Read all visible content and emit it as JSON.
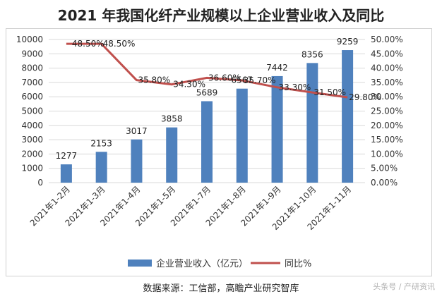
{
  "title": "2021 年我国化纤产业规模以上企业营业收入及同比",
  "source": "数据来源：工信部，高瞻产业研究智库",
  "watermark": "头条号 / 产研资讯",
  "chart_data": {
    "type": "bar",
    "title": "2021 年我国化纤产业规模以上企业营业收入及同比",
    "categories": [
      "2021年1-2月",
      "2021年1-3月",
      "2021年1-4月",
      "2021年1-5月",
      "2021年1-7月",
      "2021年1-8月",
      "2021年1-9月",
      "2021年1-10月",
      "2021年1-11月"
    ],
    "series": [
      {
        "name": "企业营业收入（亿元）",
        "type": "bar",
        "axis": "left",
        "color": "#4f81bd",
        "values": [
          1277,
          2153,
          3017,
          3858,
          5689,
          6567,
          7442,
          8356,
          9259
        ],
        "labels": [
          "1277",
          "2153",
          "3017",
          "3858",
          "5689",
          "6567",
          "7442",
          "8356",
          "9259"
        ]
      },
      {
        "name": "同比%",
        "type": "line",
        "axis": "right",
        "color": "#c0504d",
        "values": [
          48.5,
          48.5,
          35.8,
          34.3,
          36.6,
          35.7,
          33.3,
          31.5,
          29.8
        ],
        "labels": [
          "48.50%",
          "48.50%",
          "35.80%",
          "34.30%",
          "36.60%",
          "35.70%",
          "33.30%",
          "31.50%",
          "29.80%"
        ]
      }
    ],
    "y_left": {
      "min": 0,
      "max": 10000,
      "ticks": [
        "0",
        "1000",
        "2000",
        "3000",
        "4000",
        "5000",
        "6000",
        "7000",
        "8000",
        "9000",
        "10000"
      ]
    },
    "y_right": {
      "min": 0,
      "max": 50,
      "ticks": [
        "0.00%",
        "5.00%",
        "10.00%",
        "15.00%",
        "20.00%",
        "25.00%",
        "30.00%",
        "35.00%",
        "40.00%",
        "45.00%",
        "50.00%"
      ]
    },
    "grid": true,
    "legend_position": "bottom"
  }
}
